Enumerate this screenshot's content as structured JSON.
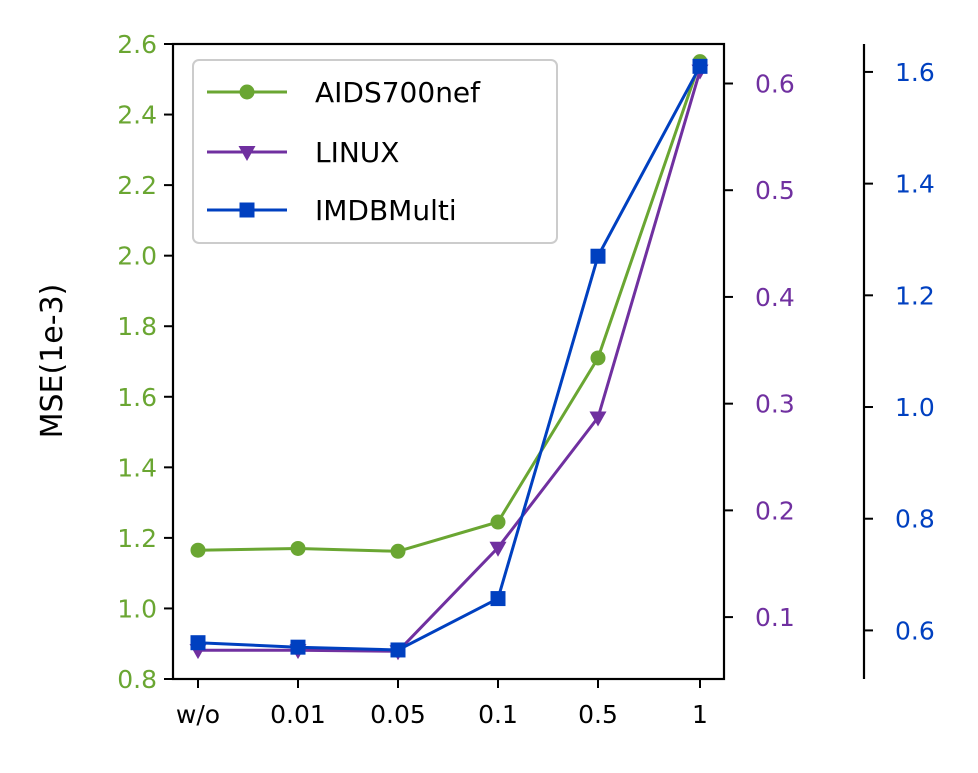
{
  "chart_data": {
    "type": "line",
    "categories": [
      "w/o",
      "0.01",
      "0.05",
      "0.1",
      "0.5",
      "1"
    ],
    "ylabel": "MSE(1e-3)",
    "legend_position": "top-left",
    "grid": false,
    "axes": {
      "left": {
        "series": "AIDS700nef",
        "range": [
          0.8,
          2.6
        ],
        "ticks": [
          "0.8",
          "1.0",
          "1.2",
          "1.4",
          "1.6",
          "1.8",
          "2.0",
          "2.2",
          "2.4",
          "2.6"
        ],
        "tick_values": [
          0.8,
          1.0,
          1.2,
          1.4,
          1.6,
          1.8,
          2.0,
          2.2,
          2.4,
          2.6
        ],
        "color": "#6aa632"
      },
      "right": {
        "series": "LINUX",
        "range": [
          0.042,
          0.637
        ],
        "ticks": [
          "0.1",
          "0.2",
          "0.3",
          "0.4",
          "0.5",
          "0.6"
        ],
        "tick_values": [
          0.1,
          0.2,
          0.3,
          0.4,
          0.5,
          0.6
        ],
        "color": "#7030a0"
      },
      "far_right": {
        "series": "IMDBMulti",
        "range": [
          0.513,
          1.65
        ],
        "ticks": [
          "0.6",
          "0.8",
          "1.0",
          "1.2",
          "1.4",
          "1.6"
        ],
        "tick_values": [
          0.6,
          0.8,
          1.0,
          1.2,
          1.4,
          1.6
        ],
        "color": "#0040c0"
      }
    },
    "series": [
      {
        "name": "AIDS700nef",
        "axis": "left",
        "marker": "circle",
        "color": "#6aa632",
        "values": [
          1.165,
          1.17,
          1.162,
          1.245,
          1.71,
          2.55
        ]
      },
      {
        "name": "LINUX",
        "axis": "right",
        "marker": "triangle-down",
        "color": "#7030a0",
        "values": [
          0.069,
          0.069,
          0.068,
          0.165,
          0.287,
          0.612
        ]
      },
      {
        "name": "IMDBMulti",
        "axis": "far_right",
        "marker": "square",
        "color": "#0040c0",
        "values": [
          0.578,
          0.57,
          0.565,
          0.657,
          1.27,
          1.61
        ]
      }
    ]
  }
}
